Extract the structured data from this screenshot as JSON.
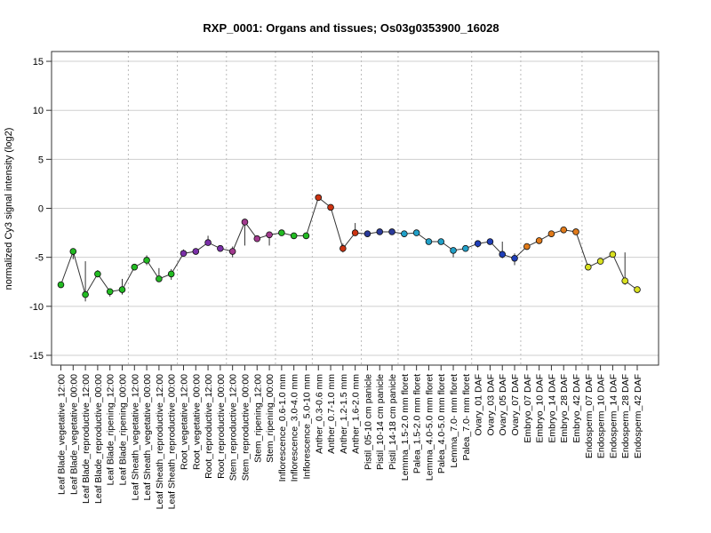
{
  "chart_data": {
    "type": "line",
    "title": "RXP_0001: Organs and tissues; Os03g0353900_16028",
    "xlabel": "",
    "ylabel": "normalized Cy3 signal intensity (log2)",
    "ylim": [
      -16,
      16
    ],
    "yticks": [
      -15,
      -10,
      -5,
      0,
      5,
      10,
      15
    ],
    "grid": true,
    "categories": [
      "Leaf Blade_vegetative_12:00",
      "Leaf Blade_vegetative_00:00",
      "Leaf Blade_reproductive_12:00",
      "Leaf Blade_reproductive_00:00",
      "Leaf Blade_ripening_12:00",
      "Leaf Blade_ripening_00:00",
      "Leaf Sheath_vegetative_12:00",
      "Leaf Sheath_vegetative_00:00",
      "Leaf Sheath_reproductive_12:00",
      "Leaf Sheath_reproductive_00:00",
      "Root_vegetative_12:00",
      "Root_vegetative_00:00",
      "Root_reproductive_12:00",
      "Root_reproductive_00:00",
      "Stem_reproductive_12:00",
      "Stem_reproductive_00:00",
      "Stem_ripening_12:00",
      "Stem_ripening_00:00",
      "Inflorescence_0.6-1.0 mm",
      "Inflorescence_3.0-4.0 mm",
      "Inflorescence_5.0-10 mm",
      "Anther_0.3-0.6 mm",
      "Anther_0.7-1.0 mm",
      "Anther_1.2-1.5 mm",
      "Anther_1.6-2.0 mm",
      "Pistil_05-10 cm panicle",
      "Pistil_10-14 cm panicle",
      "Pistil_14-18 cm panicle",
      "Lemma_1.5-2.0 mm floret",
      "Palea_1.5-2.0 mm floret",
      "Lemma_4.0-5.0 mm floret",
      "Palea_4.0-5.0 mm floret",
      "Lemma_7.0- mm floret",
      "Palea_7.0- mm floret",
      "Ovary_01 DAF",
      "Ovary_03 DAF",
      "Ovary_05 DAF",
      "Ovary_07 DAF",
      "Embryo_07 DAF",
      "Embryo_10 DAF",
      "Embryo_14 DAF",
      "Embryo_28 DAF",
      "Embryo_42 DAF",
      "Endosperm_07 DAF",
      "Endosperm_10 DAF",
      "Endosperm_14 DAF",
      "Endosperm_28 DAF",
      "Endosperm_42 DAF"
    ],
    "values": [
      -7.8,
      -4.4,
      -8.8,
      -6.7,
      -8.5,
      -8.3,
      -6.0,
      -5.3,
      -7.2,
      -6.7,
      -4.6,
      -4.4,
      -3.5,
      -4.1,
      -4.4,
      -1.4,
      -3.1,
      -2.7,
      -2.5,
      -2.8,
      -2.8,
      1.1,
      0.1,
      -4.1,
      -2.5,
      -2.6,
      -2.4,
      -2.4,
      -2.6,
      -2.5,
      -3.4,
      -3.4,
      -4.3,
      -4.1,
      -3.6,
      -3.4,
      -4.7,
      -5.1,
      -3.9,
      -3.3,
      -2.6,
      -2.2,
      -2.4,
      -6.0,
      -5.4,
      -4.7,
      -7.4,
      -8.3
    ],
    "error_low": [
      -8.0,
      -5.2,
      -9.5,
      -7.0,
      -9.0,
      -8.8,
      -6.3,
      -5.8,
      -7.5,
      -7.3,
      -4.9,
      -4.7,
      -3.8,
      -4.4,
      -5.0,
      -3.8,
      -3.4,
      -3.8,
      -2.7,
      -3.1,
      -3.0,
      0.9,
      -0.1,
      -4.5,
      -2.7,
      -2.8,
      -2.6,
      -2.6,
      -2.8,
      -2.7,
      -3.6,
      -3.6,
      -5.0,
      -4.4,
      -4.0,
      -3.6,
      -5.1,
      -5.8,
      -4.1,
      -3.5,
      -2.8,
      -2.4,
      -2.6,
      -6.3,
      -5.7,
      -5.0,
      -7.8,
      -8.5
    ],
    "error_high": [
      -7.6,
      -4.2,
      -5.4,
      -6.3,
      -8.2,
      -7.2,
      -5.8,
      -4.8,
      -6.1,
      -6.2,
      -4.2,
      -4.1,
      -2.8,
      -3.8,
      -3.9,
      -1.2,
      -2.8,
      -2.4,
      -2.3,
      -2.5,
      -2.6,
      1.3,
      0.3,
      -3.6,
      -1.5,
      -2.4,
      -2.2,
      -2.2,
      -2.4,
      -2.3,
      -3.2,
      -3.2,
      -4.0,
      -3.8,
      -3.3,
      -3.2,
      -3.4,
      -4.6,
      -3.7,
      -3.1,
      -2.4,
      -2.0,
      -2.2,
      -5.7,
      -5.1,
      -4.4,
      -4.5,
      -8.1
    ],
    "group_separators_after": [
      5,
      9,
      13,
      17,
      20,
      24,
      27,
      33,
      37,
      42
    ],
    "point_colors": [
      "#22bb22",
      "#22bb22",
      "#22bb22",
      "#22bb22",
      "#22bb22",
      "#22bb22",
      "#22bb22",
      "#22bb22",
      "#22bb22",
      "#22bb22",
      "#7a2fa8",
      "#7a2fa8",
      "#7a2fa8",
      "#7a2fa8",
      "#a23a8e",
      "#a23a8e",
      "#a23a8e",
      "#a23a8e",
      "#22bb22",
      "#22bb22",
      "#22bb22",
      "#cc3311",
      "#cc3311",
      "#cc3311",
      "#cc3311",
      "#2a3a9a",
      "#2a3a9a",
      "#2a3a9a",
      "#21a0c8",
      "#21a0c8",
      "#21a0c8",
      "#21a0c8",
      "#21a0c8",
      "#21a0c8",
      "#1f3eb8",
      "#1f3eb8",
      "#1f3eb8",
      "#1f3eb8",
      "#e07a1a",
      "#e07a1a",
      "#e07a1a",
      "#e07a1a",
      "#e07a1a",
      "#d9e020",
      "#d9e020",
      "#d9e020",
      "#d9e020",
      "#d9e020"
    ]
  }
}
